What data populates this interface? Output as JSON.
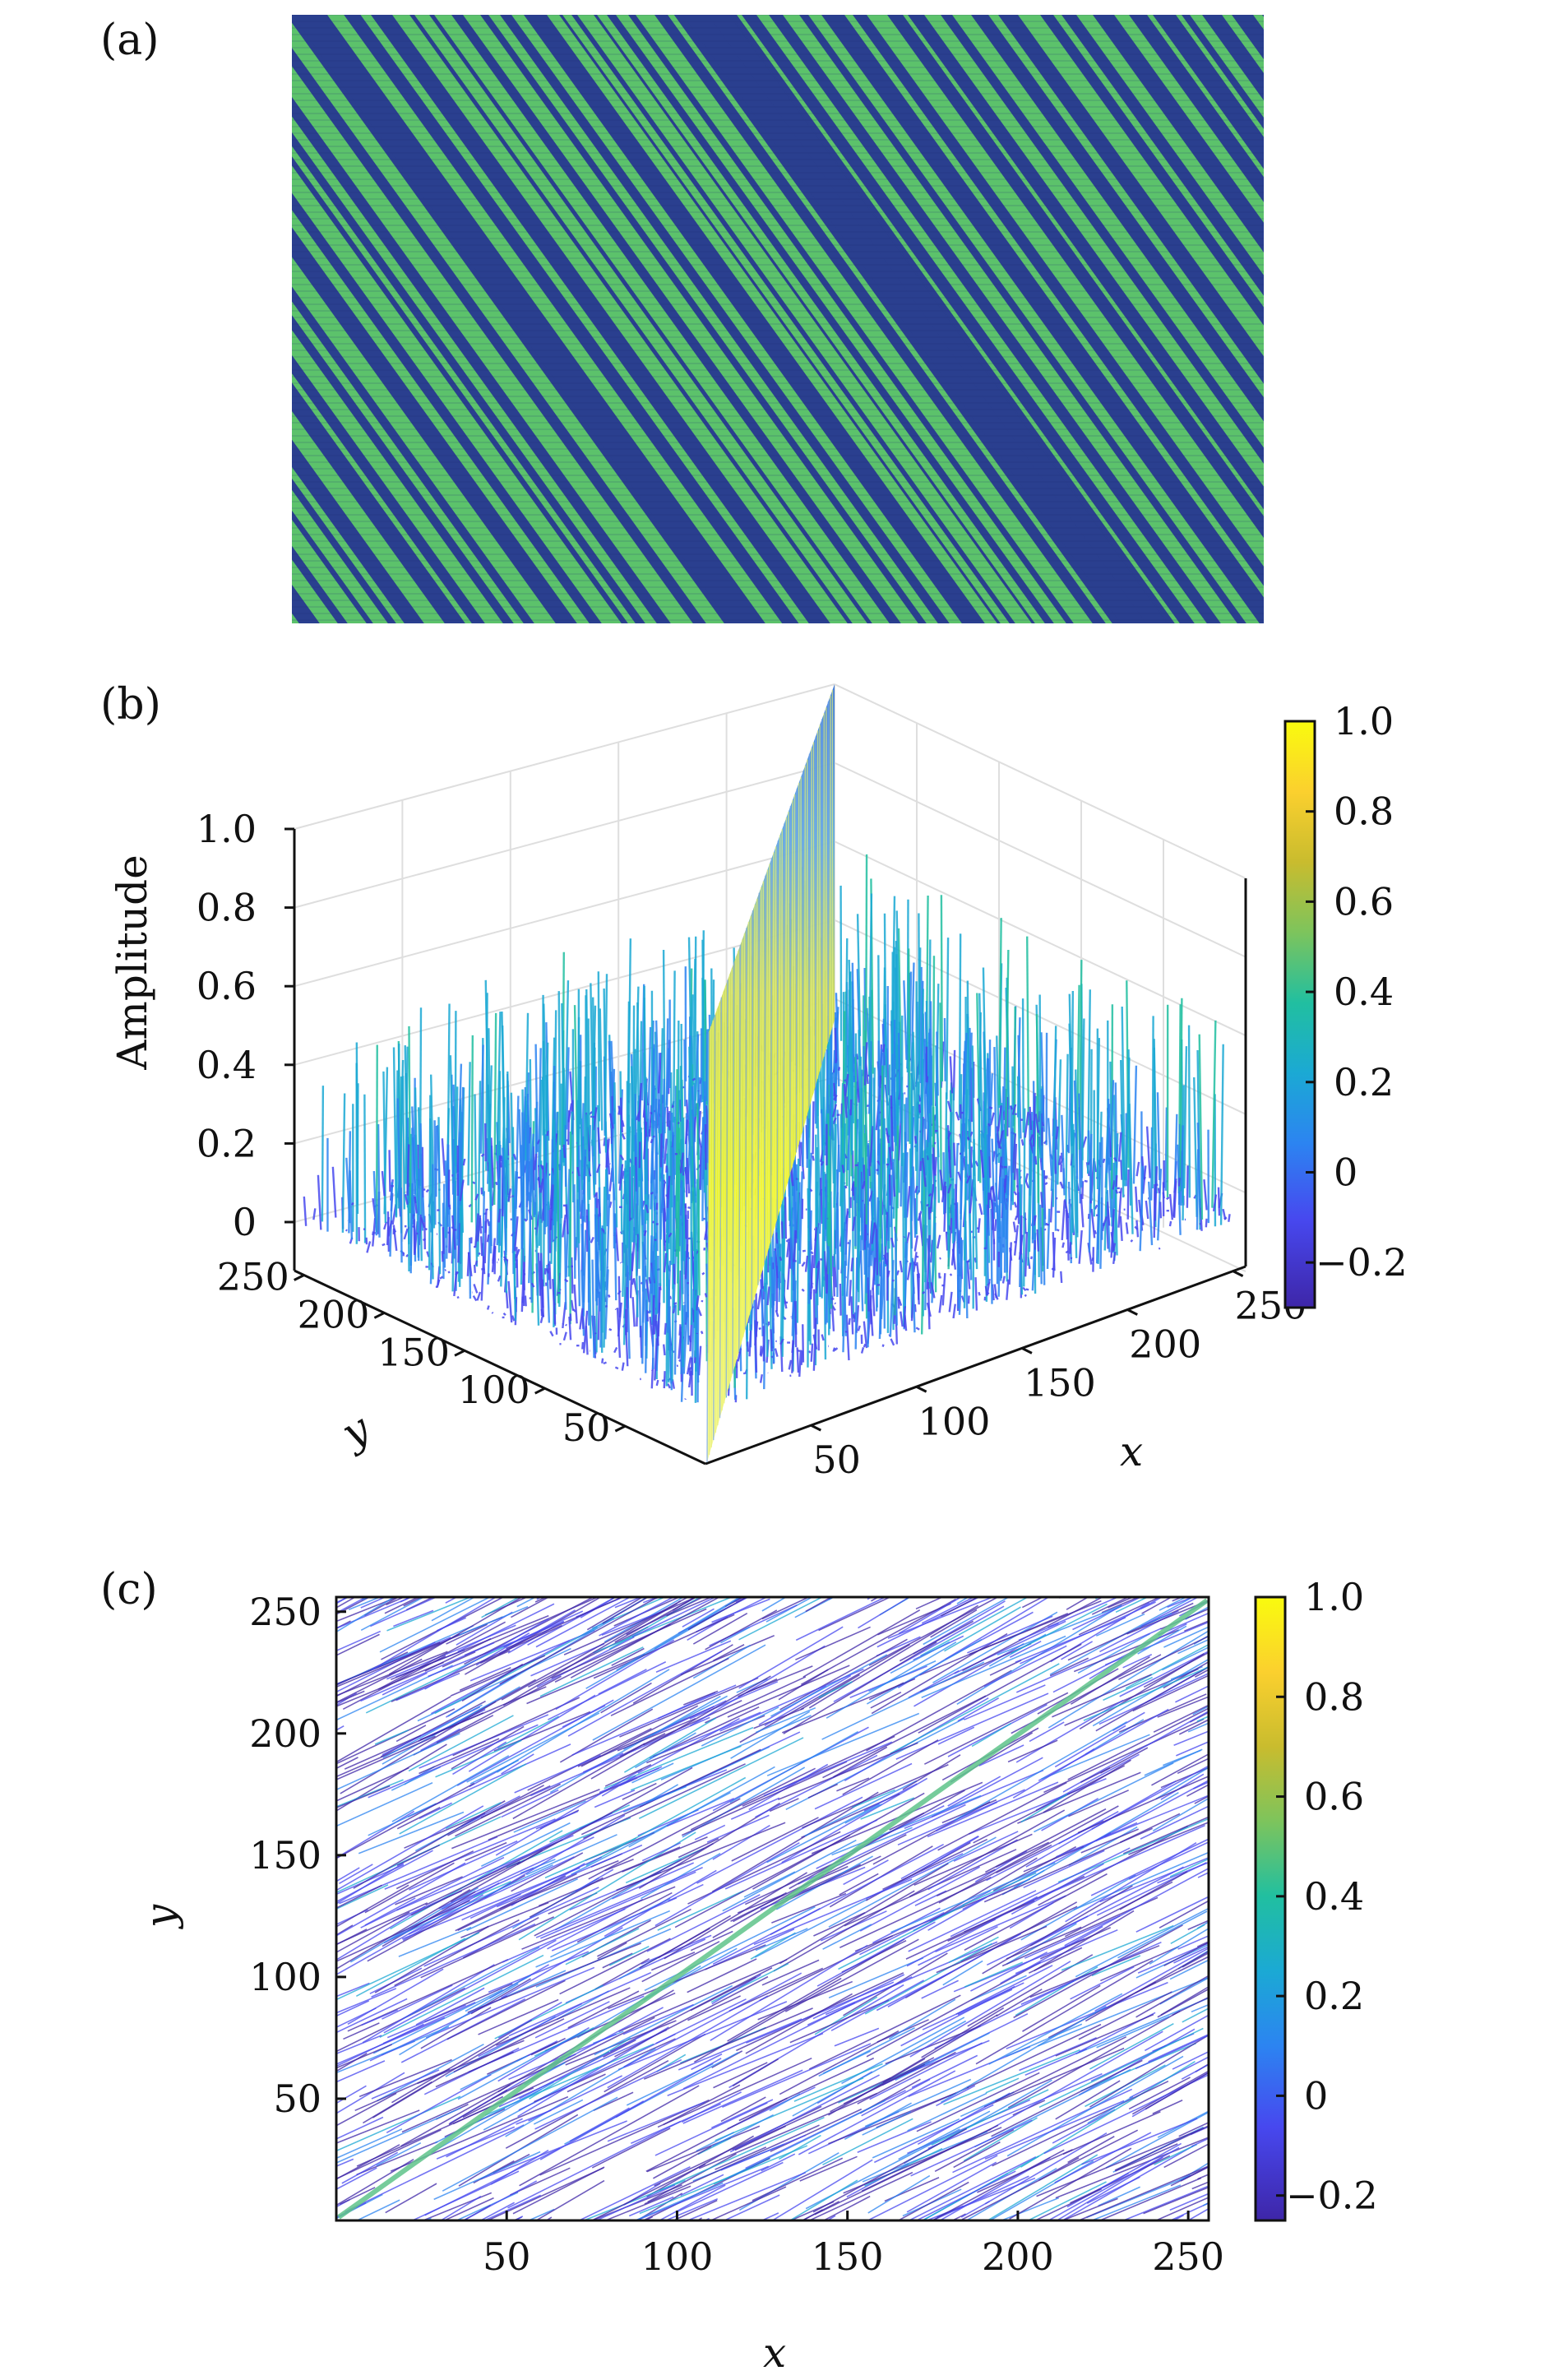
{
  "chart_data": [
    {
      "panel": "(a)",
      "type": "heatmap",
      "title": "",
      "description_values": "binary stripe pattern",
      "values_levels": [
        0,
        1
      ],
      "colors": {
        "low": "#2a3f8f",
        "high": "#5cc26b"
      },
      "stripe_direction": "diagonal, descending left to right"
    },
    {
      "panel": "(b)",
      "type": "area",
      "title": "",
      "zlabel": "Amplitude",
      "xlabel": "x",
      "ylabel": "y",
      "z_ticks": [
        "0",
        "0.2",
        "0.4",
        "0.6",
        "0.8",
        "1.0"
      ],
      "x_ticks": [
        "50",
        "100",
        "150",
        "200",
        "250"
      ],
      "y_ticks": [
        "50",
        "100",
        "150",
        "200",
        "250"
      ],
      "zlim": [
        -0.2,
        1.0
      ],
      "xlim": [
        0,
        256
      ],
      "ylim": [
        0,
        256
      ],
      "peak": {
        "value": 1.0,
        "location": "along diagonal x = y"
      },
      "background_range": [
        -0.2,
        0.3
      ],
      "colorbar": {
        "ticks": [
          "1.0",
          "0.8",
          "0.6",
          "0.4",
          "0.2",
          "0",
          "−0.2"
        ],
        "range": [
          -0.3,
          1.0
        ]
      }
    },
    {
      "panel": "(c)",
      "type": "scatter",
      "title": "",
      "xlabel": "x",
      "ylabel": "y",
      "x_ticks": [
        "50",
        "100",
        "150",
        "200",
        "250"
      ],
      "y_ticks": [
        "50",
        "100",
        "150",
        "200",
        "250"
      ],
      "xlim": [
        0,
        256
      ],
      "ylim": [
        0,
        256
      ],
      "diagonal_peak": {
        "from": [
          0,
          0
        ],
        "to": [
          256,
          256
        ],
        "value": 0.4
      },
      "contour_range": [
        -0.2,
        0.3
      ],
      "colorbar": {
        "ticks": [
          "1.0",
          "0.8",
          "0.6",
          "0.4",
          "0.2",
          "0",
          "−0.2"
        ],
        "range": [
          -0.25,
          1.0
        ]
      }
    }
  ],
  "colormap": [
    "#3e26a8",
    "#4748ef",
    "#2c84f1",
    "#1ba9d4",
    "#21bfa0",
    "#7dc45c",
    "#c9bc2e",
    "#fbd02e",
    "#f9fb0e"
  ],
  "panel_labels": [
    "(a)",
    "(b)",
    "(c)"
  ]
}
